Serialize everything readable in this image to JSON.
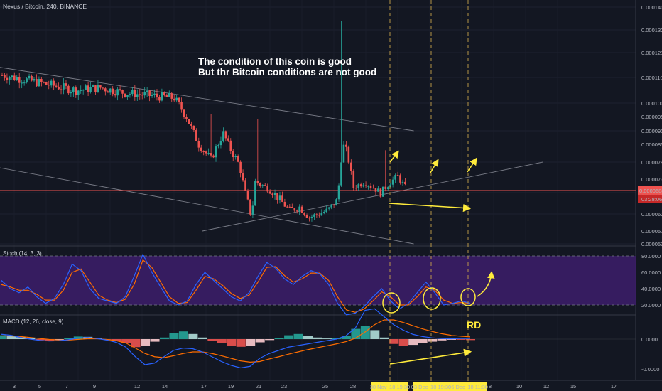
{
  "header": {
    "symbol": "Nexus / Bitcoin, 240, BINANCE"
  },
  "annotations": {
    "note_line1": "The condition of this coin is good",
    "note_line2": "But thr Bitcoin conditions are not good",
    "rd_label": "RD"
  },
  "colors": {
    "background": "#131722",
    "up": "#26a69a",
    "down": "#ef5350",
    "stoch_band": "#3d1d6b",
    "annotation": "#ffeb3b",
    "macd_line": "#2962ff",
    "signal_line": "#ff6d00"
  },
  "chart_data": [
    {
      "type": "candlestick",
      "title": "Nexus / Bitcoin, 240, BINANCE",
      "price_axis": [
        "0.0001400",
        "0.0001320",
        "0.0001210",
        "0.0001100",
        "0.0001000",
        "0.0000950",
        "0.0000900",
        "0.0000850",
        "0.0000790",
        "0.0000730",
        "0.0000680",
        "0.0000620",
        "0.0000570",
        "0.0000530"
      ],
      "last_price": "0.0000688",
      "countdown": "03:28:06",
      "x_axis_labels": [
        "3",
        "5",
        "7",
        "9",
        "12",
        "14",
        "17",
        "19",
        "21",
        "23",
        "25",
        "28",
        "2",
        "4",
        "6",
        "8",
        "10",
        "12",
        "15",
        "17"
      ],
      "x_highlight_labels": [
        "30 Nov '18  19:30",
        "03 Dec '18  19:30",
        "06 Dec '18  11:30"
      ],
      "close_path": [
        [
          0,
          0.000111
        ],
        [
          2,
          0.000109
        ],
        [
          4,
          0.000107
        ],
        [
          6,
          0.000105
        ],
        [
          8,
          0.000106
        ],
        [
          10,
          0.000104
        ],
        [
          12,
          0.000103
        ],
        [
          14,
          0.000102
        ],
        [
          15,
          9.5e-05
        ],
        [
          16,
          8.5e-05
        ],
        [
          17,
          8e-05
        ],
        [
          18,
          8.9e-05
        ],
        [
          18.5,
          8.4e-05
        ],
        [
          19.3,
          7.8e-05
        ],
        [
          19.8,
          6.8e-05
        ],
        [
          20.3,
          6.1e-05
        ],
        [
          20.6,
          7.2e-05
        ],
        [
          21.5,
          7e-05
        ],
        [
          22.6,
          6.6e-05
        ],
        [
          23.4,
          6.3e-05
        ],
        [
          24.2,
          6.4e-05
        ],
        [
          25,
          6.1e-05
        ],
        [
          26.5,
          6.3e-05
        ],
        [
          27.3,
          6.6e-05
        ],
        [
          27.7,
          8.5e-05
        ],
        [
          28.1,
          8.2e-05
        ],
        [
          28.6,
          7e-05
        ],
        [
          29.5,
          7.2e-05
        ],
        [
          30.8,
          6.8e-05
        ],
        [
          31.6,
          7.2e-05
        ],
        [
          32.2,
          7.4e-05
        ],
        [
          32.8,
          7e-05
        ]
      ],
      "trendlines": [
        {
          "name": "upper descending",
          "from": [
            -0.2,
            0.0001145
          ],
          "to": [
            33.5,
            9e-05
          ]
        },
        {
          "name": "lower descending",
          "from": [
            -0.2,
            7.7e-05
          ],
          "to": [
            33.5,
            5.3e-05
          ]
        },
        {
          "name": "rising support",
          "from": [
            16.3,
            5.7e-05
          ],
          "to": [
            44,
            7.9e-05
          ]
        }
      ]
    },
    {
      "type": "line",
      "title": "Stoch (14, 3, 3)",
      "y_axis": [
        "80.0000",
        "60.0000",
        "40.0000",
        "20.0000"
      ],
      "band": [
        20,
        80
      ],
      "k": [
        50,
        40,
        35,
        42,
        30,
        22,
        28,
        45,
        70,
        62,
        40,
        28,
        25,
        22,
        30,
        55,
        82,
        60,
        42,
        25,
        20,
        25,
        45,
        60,
        50,
        40,
        30,
        25,
        35,
        55,
        72,
        65,
        52,
        45,
        55,
        62,
        58,
        45,
        22,
        8,
        10,
        18,
        30,
        40,
        25,
        15,
        22,
        35,
        48,
        35,
        20,
        22,
        25,
        22
      ],
      "d": [
        45,
        42,
        38,
        38,
        33,
        26,
        26,
        38,
        60,
        64,
        48,
        32,
        26,
        23,
        27,
        45,
        75,
        66,
        48,
        30,
        22,
        23,
        38,
        55,
        52,
        44,
        34,
        28,
        32,
        48,
        66,
        67,
        56,
        48,
        52,
        59,
        59,
        50,
        30,
        14,
        11,
        15,
        25,
        36,
        30,
        20,
        20,
        30,
        42,
        38,
        26,
        22,
        23,
        22
      ]
    },
    {
      "type": "line",
      "title": "MACD (12, 26, close, 9)",
      "y_axis": [
        "0.0000",
        "-0.0000"
      ],
      "histogram": [
        0.12,
        0.1,
        0.06,
        0.03,
        -0.03,
        -0.05,
        -0.02,
        0.04,
        0.08,
        0.07,
        0.03,
        -0.01,
        -0.06,
        -0.12,
        -0.25,
        -0.2,
        -0.08,
        0.05,
        0.18,
        0.24,
        0.16,
        0.05,
        -0.05,
        -0.12,
        -0.2,
        -0.24,
        -0.2,
        -0.1,
        -0.03,
        0.04,
        0.12,
        0.16,
        0.1,
        0.05,
        0.02,
        0.04,
        0.1,
        0.32,
        0.42,
        0.28,
        0.05,
        -0.15,
        -0.22,
        -0.18,
        -0.12,
        -0.08,
        -0.04,
        -0.02,
        -0.02,
        -0.03
      ],
      "macd": [
        0.15,
        0.12,
        0.05,
        0.0,
        -0.04,
        -0.06,
        -0.05,
        -0.02,
        0.03,
        0.05,
        0.02,
        -0.03,
        -0.1,
        -0.25,
        -0.55,
        -0.8,
        -0.75,
        -0.55,
        -0.35,
        -0.28,
        -0.3,
        -0.4,
        -0.55,
        -0.7,
        -0.82,
        -0.9,
        -0.85,
        -0.6,
        -0.45,
        -0.35,
        -0.25,
        -0.2,
        -0.15,
        -0.1,
        -0.05,
        0.0,
        0.1,
        0.35,
        0.9,
        0.95,
        0.7,
        0.45,
        0.28,
        0.15,
        0.08,
        0.04,
        0.02,
        0.01,
        0.02,
        0.02
      ],
      "signal": [
        0.1,
        0.1,
        0.08,
        0.05,
        0.02,
        -0.01,
        -0.03,
        -0.03,
        -0.01,
        0.01,
        0.01,
        -0.01,
        -0.05,
        -0.12,
        -0.28,
        -0.45,
        -0.55,
        -0.58,
        -0.52,
        -0.45,
        -0.4,
        -0.4,
        -0.45,
        -0.52,
        -0.6,
        -0.68,
        -0.72,
        -0.7,
        -0.62,
        -0.55,
        -0.47,
        -0.4,
        -0.33,
        -0.27,
        -0.21,
        -0.15,
        -0.08,
        0.03,
        0.22,
        0.45,
        0.6,
        0.6,
        0.52,
        0.42,
        0.32,
        0.24,
        0.17,
        0.12,
        0.09,
        0.07
      ]
    }
  ]
}
